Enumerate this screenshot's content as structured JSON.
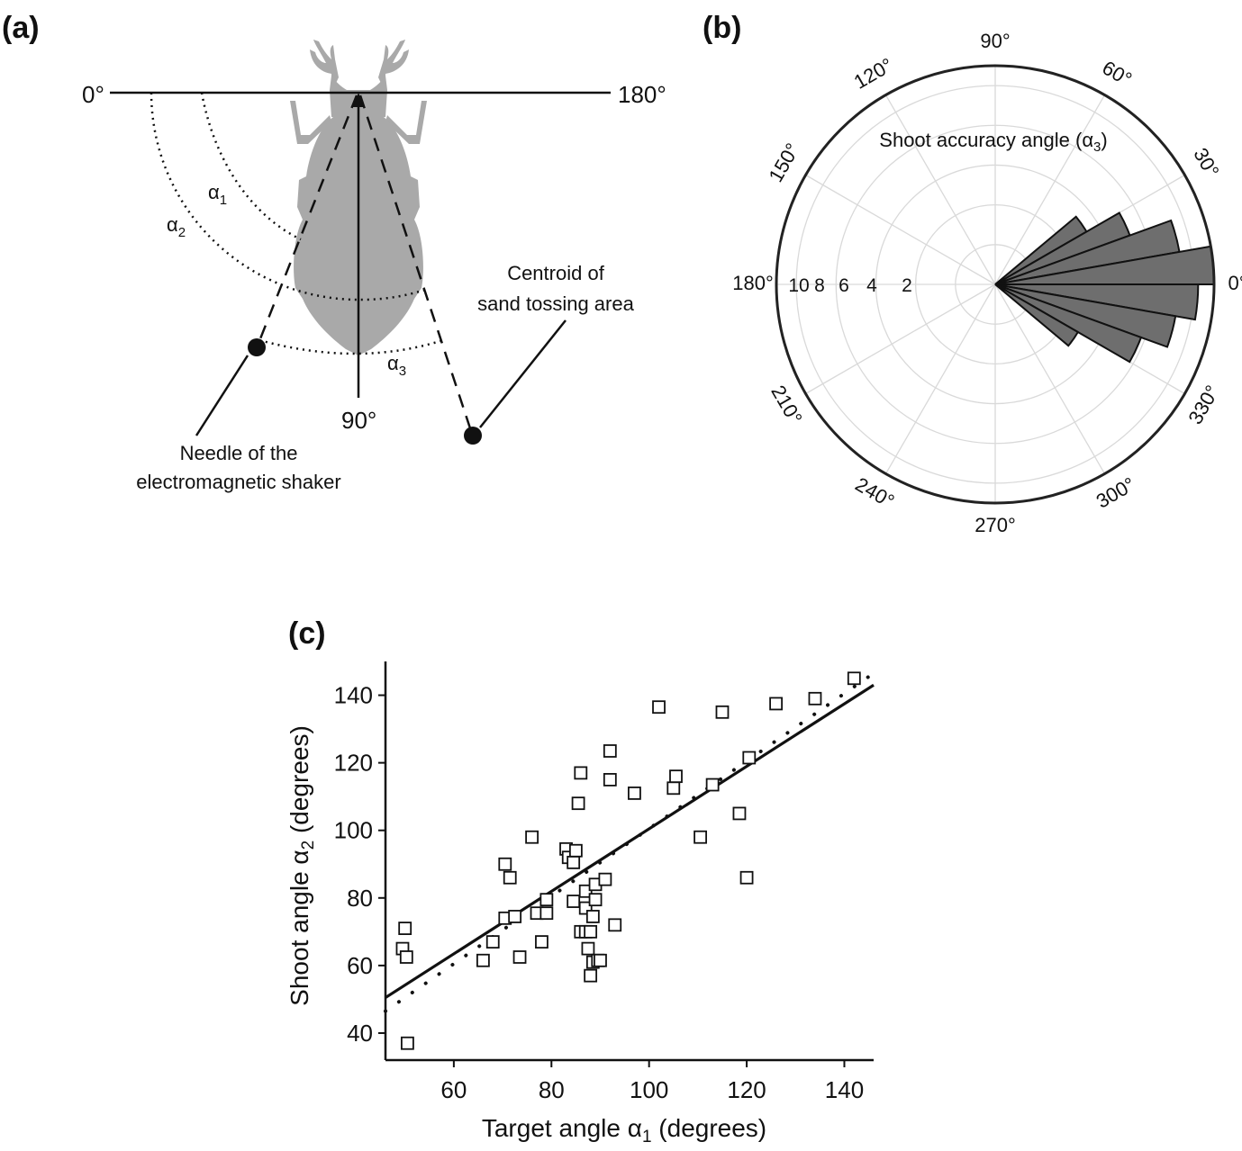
{
  "panels": {
    "a": {
      "label": "(a)",
      "angle_left": "0°",
      "angle_right": "180°",
      "angle_bottom": "90°",
      "alpha1": {
        "sym": "α",
        "sub": "1"
      },
      "alpha2": {
        "sym": "α",
        "sub": "2"
      },
      "alpha3": {
        "sym": "α",
        "sub": "3"
      },
      "centroid_label": [
        "Centroid of",
        "sand tossing area"
      ],
      "needle_label": [
        "Needle of the",
        "electromagnetic shaker"
      ]
    },
    "b": {
      "label": "(b)"
    },
    "c": {
      "label": "(c)"
    }
  },
  "colors": {
    "beetle": "#a9a9a9",
    "rose_fill": "#6e6e6e",
    "grid": "#d9d9d9",
    "ink": "#111111"
  },
  "chart_data": [
    {
      "type": "rose",
      "title": "Shoot accuracy angle (α3)",
      "title_parts": {
        "main": "Shoot accuracy angle (",
        "sym": "α",
        "sub": "3",
        "close": ")"
      },
      "angle_ticks": [
        "0°",
        "30°",
        "60°",
        "90°",
        "120°",
        "150°",
        "180°",
        "210°",
        "240°",
        "270°",
        "300°",
        "330°"
      ],
      "radial_ticks": [
        "2",
        "4",
        "6",
        "10",
        "8"
      ],
      "rmax": 11,
      "bins": [
        {
          "center_deg": 35,
          "width_deg": 10,
          "count": 5.3
        },
        {
          "center_deg": 25,
          "width_deg": 10,
          "count": 7.2
        },
        {
          "center_deg": 15,
          "width_deg": 10,
          "count": 9.4
        },
        {
          "center_deg": 5,
          "width_deg": 10,
          "count": 11.0
        },
        {
          "center_deg": -5,
          "width_deg": 10,
          "count": 10.2
        },
        {
          "center_deg": -15,
          "width_deg": 10,
          "count": 9.2
        },
        {
          "center_deg": -25,
          "width_deg": 10,
          "count": 7.8
        },
        {
          "center_deg": -35,
          "width_deg": 10,
          "count": 4.8
        }
      ]
    },
    {
      "type": "scatter",
      "xlabel": {
        "main": "Target angle ",
        "sym": "α",
        "sub": "1",
        "rest": " (degrees)"
      },
      "ylabel": {
        "main": "Shoot angle ",
        "sym": "α",
        "sub": "2",
        "rest": " (degrees)"
      },
      "xlim": [
        46,
        146
      ],
      "ylim": [
        32,
        150
      ],
      "xticks": [
        "60",
        "80",
        "100",
        "120",
        "140"
      ],
      "yticks": [
        "40",
        "60",
        "80",
        "100",
        "120",
        "140"
      ],
      "points": [
        [
          50,
          71
        ],
        [
          49.5,
          65
        ],
        [
          50.3,
          62.5
        ],
        [
          50.5,
          37
        ],
        [
          66,
          61.5
        ],
        [
          68,
          67
        ],
        [
          70.5,
          74
        ],
        [
          70.5,
          90
        ],
        [
          71.5,
          86
        ],
        [
          72.5,
          74.5
        ],
        [
          73.5,
          62.5
        ],
        [
          76,
          98
        ],
        [
          77,
          75.5
        ],
        [
          78,
          67
        ],
        [
          79,
          79.5
        ],
        [
          79,
          75.5
        ],
        [
          83,
          94.5
        ],
        [
          83.5,
          92
        ],
        [
          84.5,
          90.5
        ],
        [
          85,
          94
        ],
        [
          84.5,
          79
        ],
        [
          85.5,
          108
        ],
        [
          86,
          117
        ],
        [
          86,
          70
        ],
        [
          87,
          70
        ],
        [
          87,
          77
        ],
        [
          87.5,
          65
        ],
        [
          87,
          82
        ],
        [
          88,
          70
        ],
        [
          88,
          57
        ],
        [
          88.5,
          61
        ],
        [
          88.5,
          74.5
        ],
        [
          89,
          84
        ],
        [
          89,
          79.5
        ],
        [
          89.5,
          61.5
        ],
        [
          90,
          61.5
        ],
        [
          91,
          85.5
        ],
        [
          92,
          115
        ],
        [
          92,
          123.5
        ],
        [
          93,
          72
        ],
        [
          97,
          111
        ],
        [
          102,
          136.5
        ],
        [
          105,
          112.5
        ],
        [
          105.5,
          116
        ],
        [
          110.5,
          98
        ],
        [
          113,
          113.5
        ],
        [
          115,
          135
        ],
        [
          118.5,
          105
        ],
        [
          120,
          86
        ],
        [
          120.5,
          121.5
        ],
        [
          126,
          137.5
        ],
        [
          134,
          139
        ],
        [
          142,
          145
        ]
      ],
      "fit_line": {
        "x": [
          46,
          146
        ],
        "y": [
          50.5,
          143
        ]
      },
      "dotted_line": {
        "x": [
          46,
          146
        ],
        "y": [
          46.5,
          146.5
        ]
      }
    }
  ]
}
